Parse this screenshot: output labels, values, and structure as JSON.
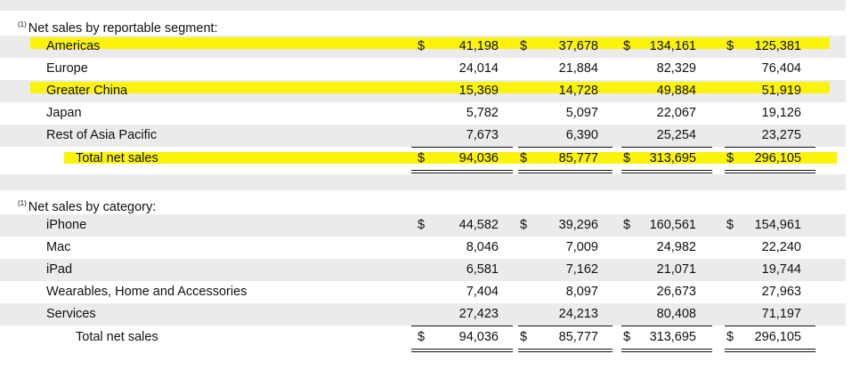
{
  "segments": {
    "title_sup": "(1)",
    "title": "Net sales by reportable segment:",
    "rows": [
      {
        "label": "Americas",
        "cur": [
          "$",
          "$",
          "$",
          "$"
        ],
        "values": [
          "41,198",
          "37,678",
          "134,161",
          "125,381"
        ]
      },
      {
        "label": "Europe",
        "values": [
          "24,014",
          "21,884",
          "82,329",
          "76,404"
        ]
      },
      {
        "label": "Greater China",
        "values": [
          "15,369",
          "14,728",
          "49,884",
          "51,919"
        ]
      },
      {
        "label": "Japan",
        "values": [
          "5,782",
          "5,097",
          "22,067",
          "19,126"
        ]
      },
      {
        "label": "Rest of Asia Pacific",
        "values": [
          "7,673",
          "6,390",
          "25,254",
          "23,275"
        ]
      }
    ],
    "total": {
      "label": "Total net sales",
      "cur": [
        "$",
        "$",
        "$",
        "$"
      ],
      "values": [
        "94,036",
        "85,777",
        "313,695",
        "296,105"
      ]
    }
  },
  "categories": {
    "title_sup": "(1)",
    "title": "Net sales by category:",
    "rows": [
      {
        "label": "iPhone",
        "cur": [
          "$",
          "$",
          "$",
          "$"
        ],
        "values": [
          "44,582",
          "39,296",
          "160,561",
          "154,961"
        ]
      },
      {
        "label": "Mac",
        "values": [
          "8,046",
          "7,009",
          "24,982",
          "22,240"
        ]
      },
      {
        "label": "iPad",
        "values": [
          "6,581",
          "7,162",
          "21,071",
          "19,744"
        ]
      },
      {
        "label": "Wearables, Home and Accessories",
        "values": [
          "7,404",
          "8,097",
          "26,673",
          "27,963"
        ]
      },
      {
        "label": "Services",
        "values": [
          "27,423",
          "24,213",
          "80,408",
          "71,197"
        ]
      }
    ],
    "total": {
      "label": "Total net sales",
      "cur": [
        "$",
        "$",
        "$",
        "$"
      ],
      "values": [
        "94,036",
        "85,777",
        "313,695",
        "296,105"
      ]
    }
  },
  "highlight_color": "#fbf309"
}
